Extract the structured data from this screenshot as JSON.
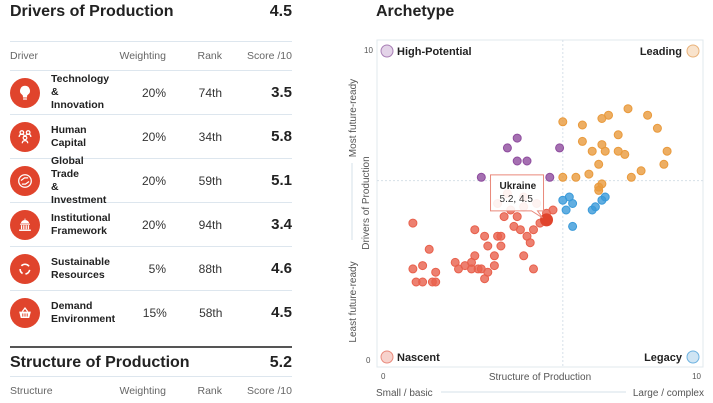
{
  "drivers": {
    "title": "Drivers of Production",
    "score": "4.5",
    "headers": {
      "name": "Driver",
      "weighting": "Weighting",
      "rank": "Rank",
      "score": "Score /10"
    },
    "rows": [
      {
        "icon": "lightbulb-icon",
        "name_line1": "Technology &",
        "name_line2": "Innovation",
        "weighting": "20%",
        "rank": "74th",
        "score": "3.5"
      },
      {
        "icon": "people-icon",
        "name_line1": "Human",
        "name_line2": "Capital",
        "weighting": "20%",
        "rank": "34th",
        "score": "5.8"
      },
      {
        "icon": "exchange-icon",
        "name_line1": "Global Trade",
        "name_line2": "& Investment",
        "weighting": "20%",
        "rank": "59th",
        "score": "5.1"
      },
      {
        "icon": "institution-icon",
        "name_line1": "Institutional",
        "name_line2": "Framework",
        "weighting": "20%",
        "rank": "94th",
        "score": "3.4"
      },
      {
        "icon": "recycle-icon",
        "name_line1": "Sustainable",
        "name_line2": "Resources",
        "weighting": "5%",
        "rank": "88th",
        "score": "4.6"
      },
      {
        "icon": "basket-icon",
        "name_line1": "Demand",
        "name_line2": "Environment",
        "weighting": "15%",
        "rank": "58th",
        "score": "4.5"
      }
    ]
  },
  "structure": {
    "title": "Structure of Production",
    "score": "5.2",
    "headers": {
      "name": "Structure",
      "weighting": "Weighting",
      "rank": "Rank",
      "score": "Score /10"
    }
  },
  "archetype": {
    "title": "Archetype",
    "colors": {
      "nascent": "#e8604c",
      "legacy": "#3a9ad9",
      "leading": "#e99a3c",
      "high_potential": "#8e4c9e",
      "highlight": "#e0442c"
    }
  },
  "chart_data": {
    "type": "scatter",
    "title": "Archetype",
    "xlabel": "Structure of Production",
    "ylabel": "Drivers of Production",
    "x_range": [
      0,
      10
    ],
    "y_range": [
      0,
      10
    ],
    "x_ticks": [
      "0",
      "10"
    ],
    "y_ticks": [
      "0",
      "10"
    ],
    "x_axis_low": "Small / basic",
    "x_axis_high": "Large / complex",
    "y_axis_low": "Least future-ready",
    "y_axis_high": "Most future-ready",
    "divider_x": 5.7,
    "divider_y": 5.7,
    "quadrants": [
      {
        "label": "High-Potential",
        "position": "top-left",
        "series": "high_potential"
      },
      {
        "label": "Leading",
        "position": "top-right",
        "series": "leading"
      },
      {
        "label": "Nascent",
        "position": "bottom-left",
        "series": "nascent"
      },
      {
        "label": "Legacy",
        "position": "bottom-right",
        "series": "legacy"
      }
    ],
    "highlight": {
      "label": "Ukraine",
      "value_text": "5.2, 4.5",
      "x": 5.2,
      "y": 4.5
    },
    "series": [
      {
        "name": "high_potential",
        "points": [
          [
            4.3,
            7.0
          ],
          [
            4.0,
            6.7
          ],
          [
            4.3,
            6.3
          ],
          [
            4.6,
            6.3
          ],
          [
            5.6,
            6.7
          ],
          [
            3.2,
            5.8
          ],
          [
            5.3,
            5.8
          ]
        ]
      },
      {
        "name": "leading",
        "points": [
          [
            5.7,
            7.5
          ],
          [
            6.3,
            7.4
          ],
          [
            6.9,
            7.6
          ],
          [
            7.1,
            7.7
          ],
          [
            7.7,
            7.9
          ],
          [
            8.3,
            7.7
          ],
          [
            8.6,
            7.3
          ],
          [
            6.3,
            6.9
          ],
          [
            6.9,
            6.8
          ],
          [
            7.4,
            7.1
          ],
          [
            6.6,
            6.6
          ],
          [
            7.0,
            6.6
          ],
          [
            7.4,
            6.6
          ],
          [
            7.6,
            6.5
          ],
          [
            6.8,
            6.2
          ],
          [
            6.1,
            5.8
          ],
          [
            6.5,
            5.9
          ],
          [
            5.7,
            5.8
          ],
          [
            7.8,
            5.8
          ],
          [
            8.1,
            6.0
          ],
          [
            8.9,
            6.6
          ],
          [
            8.8,
            6.2
          ],
          [
            6.8,
            5.5
          ],
          [
            6.9,
            5.6
          ],
          [
            6.8,
            5.4
          ]
        ]
      },
      {
        "name": "legacy",
        "points": [
          [
            5.7,
            5.1
          ],
          [
            5.9,
            5.2
          ],
          [
            6.0,
            5.0
          ],
          [
            5.8,
            4.8
          ],
          [
            6.0,
            4.3
          ],
          [
            6.6,
            4.8
          ],
          [
            6.7,
            4.9
          ],
          [
            6.9,
            5.1
          ],
          [
            7.0,
            5.2
          ]
        ]
      },
      {
        "name": "nascent",
        "points": [
          [
            1.1,
            4.4
          ],
          [
            1.6,
            3.6
          ],
          [
            1.4,
            3.1
          ],
          [
            1.1,
            3.0
          ],
          [
            1.2,
            2.6
          ],
          [
            1.4,
            2.6
          ],
          [
            1.7,
            2.6
          ],
          [
            1.8,
            2.6
          ],
          [
            1.8,
            2.9
          ],
          [
            2.4,
            3.2
          ],
          [
            2.5,
            3.0
          ],
          [
            2.7,
            3.1
          ],
          [
            2.9,
            3.2
          ],
          [
            2.9,
            3.0
          ],
          [
            3.0,
            3.4
          ],
          [
            3.1,
            3.0
          ],
          [
            3.2,
            3.0
          ],
          [
            3.3,
            2.7
          ],
          [
            3.4,
            2.9
          ],
          [
            3.6,
            3.1
          ],
          [
            3.6,
            3.4
          ],
          [
            3.0,
            4.2
          ],
          [
            3.3,
            4.0
          ],
          [
            3.4,
            3.7
          ],
          [
            3.7,
            4.0
          ],
          [
            3.8,
            4.0
          ],
          [
            3.8,
            3.7
          ],
          [
            4.2,
            4.3
          ],
          [
            4.4,
            4.2
          ],
          [
            4.6,
            4.0
          ],
          [
            4.5,
            3.4
          ],
          [
            4.7,
            3.8
          ],
          [
            4.8,
            3.0
          ],
          [
            3.9,
            4.6
          ],
          [
            4.1,
            4.8
          ],
          [
            4.3,
            4.6
          ],
          [
            4.5,
            4.9
          ],
          [
            4.9,
            5.0
          ],
          [
            5.2,
            4.7
          ],
          [
            5.4,
            4.8
          ],
          [
            5.0,
            4.4
          ],
          [
            4.8,
            4.2
          ],
          [
            3.7,
            5.0
          ],
          [
            4.0,
            5.3
          ],
          [
            4.5,
            5.2
          ]
        ]
      }
    ]
  }
}
